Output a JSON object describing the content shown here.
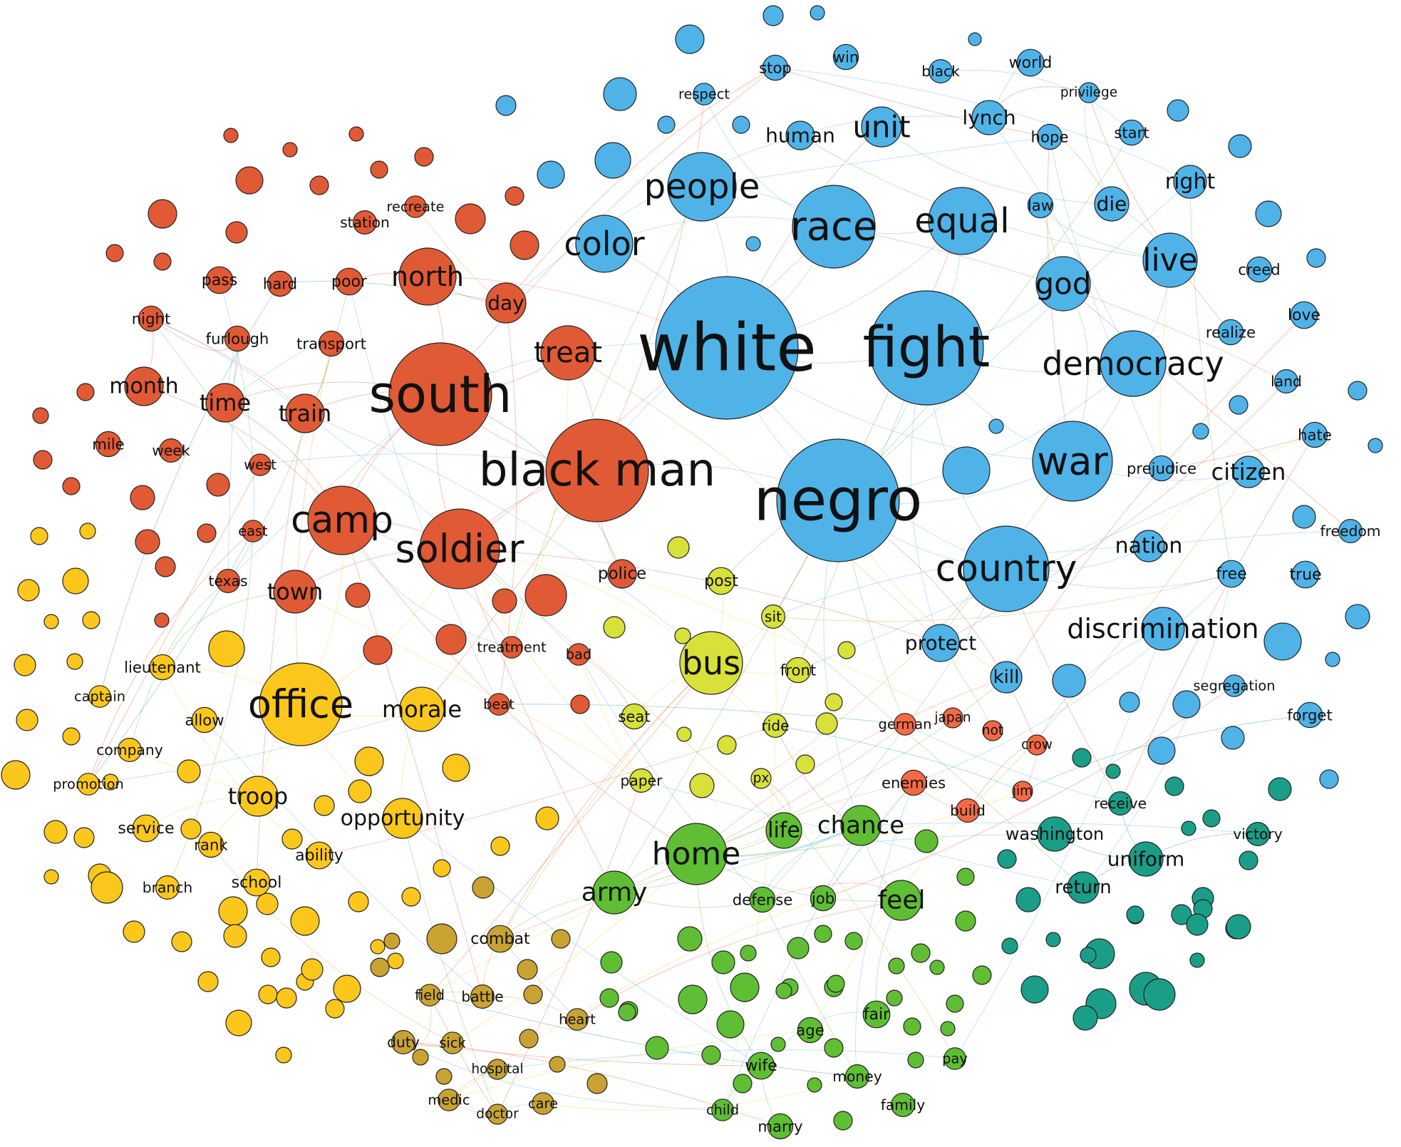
{
  "colors": {
    "blue": "#4fb3e8",
    "red": "#e05a35",
    "orange_red": "#f56a45",
    "yellow": "#fcc71c",
    "lime": "#d8e03a",
    "green": "#5fbe33",
    "teal": "#1b9e88",
    "olive": "#c9a332"
  },
  "nodes": [
    {
      "label": "white",
      "group": "blue",
      "weight": 100
    },
    {
      "label": "fight",
      "group": "blue",
      "weight": 60
    },
    {
      "label": "negro",
      "group": "blue",
      "weight": 75
    },
    {
      "label": "race",
      "group": "blue",
      "weight": 35
    },
    {
      "label": "people",
      "group": "blue",
      "weight": 25
    },
    {
      "label": "color",
      "group": "blue",
      "weight": 22
    },
    {
      "label": "equal",
      "group": "blue",
      "weight": 25
    },
    {
      "label": "god",
      "group": "blue",
      "weight": 18
    },
    {
      "label": "live",
      "group": "blue",
      "weight": 18
    },
    {
      "label": "democracy",
      "group": "blue",
      "weight": 26
    },
    {
      "label": "war",
      "group": "blue",
      "weight": 32
    },
    {
      "label": "country",
      "group": "blue",
      "weight": 40
    },
    {
      "label": "unit",
      "group": "blue",
      "weight": 16
    },
    {
      "label": "human",
      "group": "blue",
      "weight": 8
    },
    {
      "label": "stop",
      "group": "blue",
      "weight": 8
    },
    {
      "label": "win",
      "group": "blue",
      "weight": 8
    },
    {
      "label": "black",
      "group": "blue",
      "weight": 7
    },
    {
      "label": "world",
      "group": "blue",
      "weight": 9
    },
    {
      "label": "respect",
      "group": "blue",
      "weight": 6
    },
    {
      "label": "privilege",
      "group": "blue",
      "weight": 5
    },
    {
      "label": "lynch",
      "group": "blue",
      "weight": 9
    },
    {
      "label": "hope",
      "group": "blue",
      "weight": 8
    },
    {
      "label": "start",
      "group": "blue",
      "weight": 8
    },
    {
      "label": "right",
      "group": "blue",
      "weight": 9
    },
    {
      "label": "law",
      "group": "blue",
      "weight": 8
    },
    {
      "label": "die",
      "group": "blue",
      "weight": 10
    },
    {
      "label": "creed",
      "group": "blue",
      "weight": 8
    },
    {
      "label": "love",
      "group": "blue",
      "weight": 9
    },
    {
      "label": "realize",
      "group": "blue",
      "weight": 8
    },
    {
      "label": "land",
      "group": "blue",
      "weight": 7
    },
    {
      "label": "hate",
      "group": "blue",
      "weight": 8
    },
    {
      "label": "prejudice",
      "group": "blue",
      "weight": 8
    },
    {
      "label": "citizen",
      "group": "blue",
      "weight": 12
    },
    {
      "label": "freedom",
      "group": "blue",
      "weight": 7
    },
    {
      "label": "nation",
      "group": "blue",
      "weight": 10
    },
    {
      "label": "free",
      "group": "blue",
      "weight": 9
    },
    {
      "label": "true",
      "group": "blue",
      "weight": 9
    },
    {
      "label": "discrimination",
      "group": "blue",
      "weight": 14
    },
    {
      "label": "protect",
      "group": "blue",
      "weight": 10
    },
    {
      "label": "kill",
      "group": "blue",
      "weight": 9
    },
    {
      "label": "segregation",
      "group": "blue",
      "weight": 6
    },
    {
      "label": "forget",
      "group": "blue",
      "weight": 8
    },
    {
      "label": "south",
      "group": "red",
      "weight": 55
    },
    {
      "label": "black man",
      "group": "red",
      "weight": 50
    },
    {
      "label": "soldier",
      "group": "red",
      "weight": 35
    },
    {
      "label": "camp",
      "group": "red",
      "weight": 30
    },
    {
      "label": "north",
      "group": "red",
      "weight": 18
    },
    {
      "label": "treat",
      "group": "red",
      "weight": 15
    },
    {
      "label": "train",
      "group": "red",
      "weight": 12
    },
    {
      "label": "time",
      "group": "red",
      "weight": 12
    },
    {
      "label": "month",
      "group": "red",
      "weight": 12
    },
    {
      "label": "town",
      "group": "red",
      "weight": 12
    },
    {
      "label": "day",
      "group": "red",
      "weight": 10
    },
    {
      "label": "poor",
      "group": "red",
      "weight": 9
    },
    {
      "label": "pass",
      "group": "red",
      "weight": 9
    },
    {
      "label": "hard",
      "group": "red",
      "weight": 8
    },
    {
      "label": "night",
      "group": "red",
      "weight": 8
    },
    {
      "label": "furlough",
      "group": "red",
      "weight": 8
    },
    {
      "label": "transport",
      "group": "red",
      "weight": 8
    },
    {
      "label": "station",
      "group": "red",
      "weight": 7
    },
    {
      "label": "recreate",
      "group": "red",
      "weight": 6
    },
    {
      "label": "mile",
      "group": "red",
      "weight": 8
    },
    {
      "label": "week",
      "group": "red",
      "weight": 7
    },
    {
      "label": "west",
      "group": "red",
      "weight": 6
    },
    {
      "label": "east",
      "group": "red",
      "weight": 6
    },
    {
      "label": "texas",
      "group": "red",
      "weight": 7
    },
    {
      "label": "police",
      "group": "red",
      "weight": 10
    },
    {
      "label": "treatment",
      "group": "red",
      "weight": 6
    },
    {
      "label": "bad",
      "group": "red",
      "weight": 6
    },
    {
      "label": "beat",
      "group": "red",
      "weight": 6
    },
    {
      "label": "german",
      "group": "orange_red",
      "weight": 6
    },
    {
      "label": "japan",
      "group": "orange_red",
      "weight": 5
    },
    {
      "label": "not",
      "group": "orange_red",
      "weight": 5
    },
    {
      "label": "crow",
      "group": "orange_red",
      "weight": 5
    },
    {
      "label": "jim",
      "group": "orange_red",
      "weight": 5
    },
    {
      "label": "enemies",
      "group": "orange_red",
      "weight": 8
    },
    {
      "label": "build",
      "group": "orange_red",
      "weight": 7
    },
    {
      "label": "office",
      "group": "yellow",
      "weight": 45
    },
    {
      "label": "morale",
      "group": "yellow",
      "weight": 15
    },
    {
      "label": "troop",
      "group": "yellow",
      "weight": 12
    },
    {
      "label": "opportunity",
      "group": "yellow",
      "weight": 14
    },
    {
      "label": "lieutenant",
      "group": "yellow",
      "weight": 8
    },
    {
      "label": "captain",
      "group": "yellow",
      "weight": 6
    },
    {
      "label": "allow",
      "group": "yellow",
      "weight": 8
    },
    {
      "label": "company",
      "group": "yellow",
      "weight": 7
    },
    {
      "label": "promotion",
      "group": "yellow",
      "weight": 6
    },
    {
      "label": "service",
      "group": "yellow",
      "weight": 9
    },
    {
      "label": "rank",
      "group": "yellow",
      "weight": 8
    },
    {
      "label": "ability",
      "group": "yellow",
      "weight": 9
    },
    {
      "label": "school",
      "group": "yellow",
      "weight": 9
    },
    {
      "label": "branch",
      "group": "yellow",
      "weight": 7
    },
    {
      "label": "bus",
      "group": "lime",
      "weight": 22
    },
    {
      "label": "post",
      "group": "lime",
      "weight": 9
    },
    {
      "label": "sit",
      "group": "lime",
      "weight": 7
    },
    {
      "label": "front",
      "group": "lime",
      "weight": 8
    },
    {
      "label": "seat",
      "group": "lime",
      "weight": 8
    },
    {
      "label": "ride",
      "group": "lime",
      "weight": 7
    },
    {
      "label": "paper",
      "group": "lime",
      "weight": 7
    },
    {
      "label": "px",
      "group": "lime",
      "weight": 5
    },
    {
      "label": "home",
      "group": "green",
      "weight": 24
    },
    {
      "label": "chance",
      "group": "green",
      "weight": 16
    },
    {
      "label": "life",
      "group": "green",
      "weight": 11
    },
    {
      "label": "army",
      "group": "green",
      "weight": 16
    },
    {
      "label": "feel",
      "group": "green",
      "weight": 15
    },
    {
      "label": "defense",
      "group": "green",
      "weight": 8
    },
    {
      "label": "job",
      "group": "green",
      "weight": 8
    },
    {
      "label": "age",
      "group": "green",
      "weight": 8
    },
    {
      "label": "fair",
      "group": "green",
      "weight": 9
    },
    {
      "label": "wife",
      "group": "green",
      "weight": 9
    },
    {
      "label": "money",
      "group": "green",
      "weight": 7
    },
    {
      "label": "pay",
      "group": "green",
      "weight": 6
    },
    {
      "label": "family",
      "group": "green",
      "weight": 7
    },
    {
      "label": "child",
      "group": "green",
      "weight": 6
    },
    {
      "label": "marry",
      "group": "green",
      "weight": 8
    },
    {
      "label": "receive",
      "group": "teal",
      "weight": 7
    },
    {
      "label": "washington",
      "group": "teal",
      "weight": 10
    },
    {
      "label": "uniform",
      "group": "teal",
      "weight": 10
    },
    {
      "label": "return",
      "group": "teal",
      "weight": 9
    },
    {
      "label": "victory",
      "group": "teal",
      "weight": 7
    },
    {
      "label": "combat",
      "group": "olive",
      "weight": 9
    },
    {
      "label": "field",
      "group": "olive",
      "weight": 6
    },
    {
      "label": "battle",
      "group": "olive",
      "weight": 7
    },
    {
      "label": "heart",
      "group": "olive",
      "weight": 6
    },
    {
      "label": "duty",
      "group": "olive",
      "weight": 7
    },
    {
      "label": "sick",
      "group": "olive",
      "weight": 6
    },
    {
      "label": "hospital",
      "group": "olive",
      "weight": 5
    },
    {
      "label": "medic",
      "group": "olive",
      "weight": 6
    },
    {
      "label": "doctor",
      "group": "olive",
      "weight": 5
    },
    {
      "label": "care",
      "group": "olive",
      "weight": 6
    }
  ],
  "edges": [
    [
      "white",
      "negro"
    ],
    [
      "white",
      "fight"
    ],
    [
      "white",
      "race"
    ],
    [
      "white",
      "black man"
    ],
    [
      "white",
      "south"
    ],
    [
      "white",
      "color"
    ],
    [
      "white",
      "people"
    ],
    [
      "white",
      "equal"
    ],
    [
      "white",
      "country"
    ],
    [
      "white",
      "war"
    ],
    [
      "negro",
      "fight"
    ],
    [
      "negro",
      "country"
    ],
    [
      "negro",
      "war"
    ],
    [
      "negro",
      "black man"
    ],
    [
      "negro",
      "democracy"
    ],
    [
      "fight",
      "war"
    ],
    [
      "fight",
      "democracy"
    ],
    [
      "fight",
      "country"
    ],
    [
      "fight",
      "equal"
    ],
    [
      "fight",
      "god"
    ],
    [
      "race",
      "equal"
    ],
    [
      "race",
      "people"
    ],
    [
      "race",
      "color"
    ],
    [
      "war",
      "democracy"
    ],
    [
      "war",
      "citizen"
    ],
    [
      "country",
      "nation"
    ],
    [
      "country",
      "free"
    ],
    [
      "country",
      "protect"
    ],
    [
      "democracy",
      "live"
    ],
    [
      "live",
      "die"
    ],
    [
      "south",
      "black man"
    ],
    [
      "south",
      "soldier"
    ],
    [
      "south",
      "camp"
    ],
    [
      "south",
      "north"
    ],
    [
      "south",
      "treat"
    ],
    [
      "south",
      "train"
    ],
    [
      "south",
      "time"
    ],
    [
      "south",
      "town"
    ],
    [
      "black man",
      "soldier"
    ],
    [
      "black man",
      "treat"
    ],
    [
      "black man",
      "police"
    ],
    [
      "soldier",
      "camp"
    ],
    [
      "soldier",
      "town"
    ],
    [
      "camp",
      "time"
    ],
    [
      "camp",
      "month"
    ],
    [
      "north",
      "poor"
    ],
    [
      "north",
      "day"
    ],
    [
      "train",
      "transport"
    ],
    [
      "time",
      "furlough"
    ],
    [
      "month",
      "night"
    ],
    [
      "office",
      "morale"
    ],
    [
      "office",
      "troop"
    ],
    [
      "office",
      "opportunity"
    ],
    [
      "office",
      "lieutenant"
    ],
    [
      "office",
      "camp"
    ],
    [
      "office",
      "soldier"
    ],
    [
      "troop",
      "service"
    ],
    [
      "troop",
      "rank"
    ],
    [
      "morale",
      "opportunity"
    ],
    [
      "bus",
      "seat"
    ],
    [
      "bus",
      "front"
    ],
    [
      "bus",
      "sit"
    ],
    [
      "bus",
      "ride"
    ],
    [
      "bus",
      "post"
    ],
    [
      "bus",
      "soldier"
    ],
    [
      "home",
      "army"
    ],
    [
      "home",
      "chance"
    ],
    [
      "home",
      "life"
    ],
    [
      "home",
      "feel"
    ],
    [
      "home",
      "wife"
    ],
    [
      "chance",
      "feel"
    ],
    [
      "army",
      "defense"
    ],
    [
      "feel",
      "fair"
    ],
    [
      "wife",
      "marry"
    ],
    [
      "wife",
      "child"
    ],
    [
      "washington",
      "uniform"
    ],
    [
      "uniform",
      "return"
    ],
    [
      "receive",
      "uniform"
    ],
    [
      "victory",
      "uniform"
    ],
    [
      "jim",
      "crow"
    ],
    [
      "german",
      "japan"
    ],
    [
      "enemies",
      "build"
    ],
    [
      "combat",
      "battle"
    ],
    [
      "battle",
      "field"
    ],
    [
      "duty",
      "sick"
    ],
    [
      "hospital",
      "medic"
    ],
    [
      "medic",
      "doctor"
    ],
    [
      "care",
      "doctor"
    ],
    [
      "heart",
      "battle"
    ],
    [
      "army",
      "combat"
    ],
    [
      "negro",
      "chance"
    ],
    [
      "fight",
      "protect"
    ]
  ]
}
